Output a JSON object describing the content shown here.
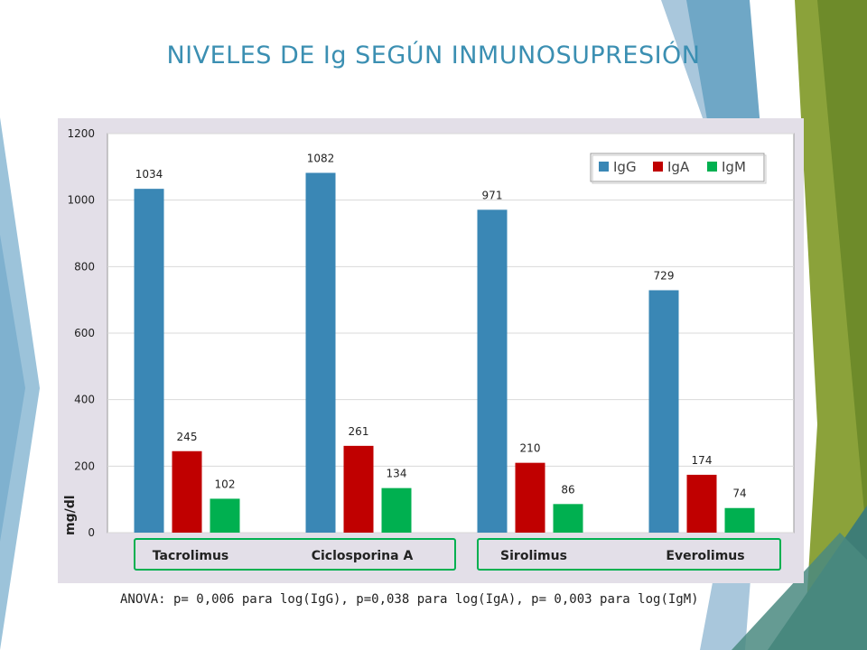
{
  "slide": {
    "title": "NIVELES DE Ig SEGÚN INMUNOSUPRESIÓN",
    "footnote": "ANOVA: p= 0,006 para log(IgG), p=0,038 para log(IgA), p= 0,003 para log(IgM)"
  },
  "chart_data": {
    "type": "bar",
    "categories": [
      "Tacrolimus",
      "Ciclosporina A",
      "Sirolimus",
      "Everolimus"
    ],
    "series": [
      {
        "name": "IgG",
        "values": [
          1034,
          1082,
          971,
          729
        ],
        "color": "#3a87b5"
      },
      {
        "name": "IgA",
        "values": [
          245,
          261,
          210,
          174
        ],
        "color": "#c00000"
      },
      {
        "name": "IgM",
        "values": [
          102,
          134,
          86,
          74
        ],
        "color": "#00b050"
      }
    ],
    "ylabel": "mg/dl",
    "ylim": [
      0,
      1200
    ],
    "yticks": [
      0,
      200,
      400,
      600,
      800,
      1000,
      1200
    ],
    "grid": true,
    "legend": "top-right",
    "category_groups": [
      {
        "categories": [
          "Tacrolimus",
          "Ciclosporina A"
        ],
        "border_color": "#00b050"
      },
      {
        "categories": [
          "Sirolimus",
          "Everolimus"
        ],
        "border_color": "#00b050"
      }
    ]
  },
  "colors": {
    "title": "#3b8fb2",
    "panel_background": "#e3dfe8",
    "decor_green": "#8ba23a",
    "decor_blue": "#6fa7c6"
  }
}
